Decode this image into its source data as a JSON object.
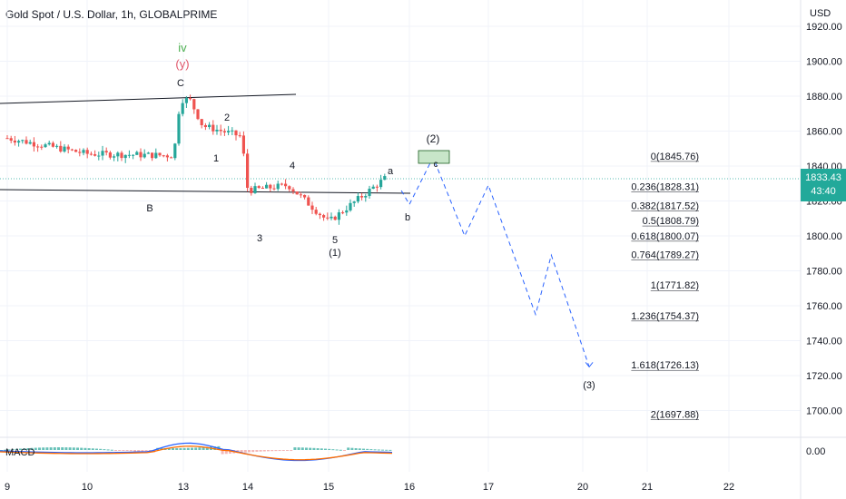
{
  "header": {
    "title": "Gold Spot / U.S. Dollar, 1h, GLOBALPRIME",
    "currency": "USD"
  },
  "price_badge": {
    "price": "1833.43",
    "countdown": "43:40",
    "color": "#22a99a"
  },
  "macd": {
    "label": "MACD",
    "axis_label": "0.00"
  },
  "colors": {
    "up": "#26a69a",
    "down": "#ef5350",
    "projection": "#2962ff",
    "wave_iv": "#4caf50",
    "wave_y": "#e0566a"
  },
  "chart_data": {
    "type": "candlestick",
    "title": "Gold Spot / U.S. Dollar, 1h, GLOBALPRIME",
    "ylim": [
      1690,
      1925
    ],
    "y_ticks": [
      "1700.00",
      "1720.00",
      "1740.00",
      "1760.00",
      "1780.00",
      "1800.00",
      "1820.00",
      "1840.00",
      "1860.00",
      "1880.00",
      "1900.00",
      "1920.00"
    ],
    "x_ticks": [
      "9",
      "10",
      "13",
      "14",
      "15",
      "16",
      "17",
      "20",
      "21",
      "22"
    ],
    "current_price": 1833.43,
    "fibonacci_levels": [
      {
        "ratio": "0",
        "price": 1845.76
      },
      {
        "ratio": "0.236",
        "price": 1828.31
      },
      {
        "ratio": "0.382",
        "price": 1817.52
      },
      {
        "ratio": "0.5",
        "price": 1808.79
      },
      {
        "ratio": "0.618",
        "price": 1800.07
      },
      {
        "ratio": "0.764",
        "price": 1789.27
      },
      {
        "ratio": "1",
        "price": 1771.82
      },
      {
        "ratio": "1.236",
        "price": 1754.37
      },
      {
        "ratio": "1.618",
        "price": 1726.13
      },
      {
        "ratio": "2",
        "price": 1697.88
      }
    ],
    "price_path": [
      {
        "x": "9",
        "y": 1856
      },
      {
        "x": "10",
        "y": 1847
      },
      {
        "x": "12.7",
        "y": 1846
      },
      {
        "x": "12.9",
        "y": 1878
      },
      {
        "x": "13.1",
        "y": 1878
      },
      {
        "x": "13.3",
        "y": 1863
      },
      {
        "x": "13.9",
        "y": 1857
      },
      {
        "x": "14",
        "y": 1826
      },
      {
        "x": "14.5",
        "y": 1829
      },
      {
        "x": "15",
        "y": 1808
      },
      {
        "x": "15.7",
        "y": 1833
      }
    ],
    "projection_path": [
      {
        "x": "15.9",
        "y": 1826
      },
      {
        "x": "16",
        "y": 1818
      },
      {
        "x": "16.3",
        "y": 1845
      },
      {
        "x": "16.7",
        "y": 1800
      },
      {
        "x": "17",
        "y": 1829
      },
      {
        "x": "18.5",
        "y": 1755
      },
      {
        "x": "19",
        "y": 1789
      },
      {
        "x": "20.1",
        "y": 1725
      }
    ],
    "wave_labels": [
      "iv",
      "(y)",
      "C",
      "B",
      "1",
      "2",
      "3",
      "4",
      "5",
      "(1)",
      "a",
      "b",
      "c",
      "(2)",
      "(3)"
    ]
  }
}
